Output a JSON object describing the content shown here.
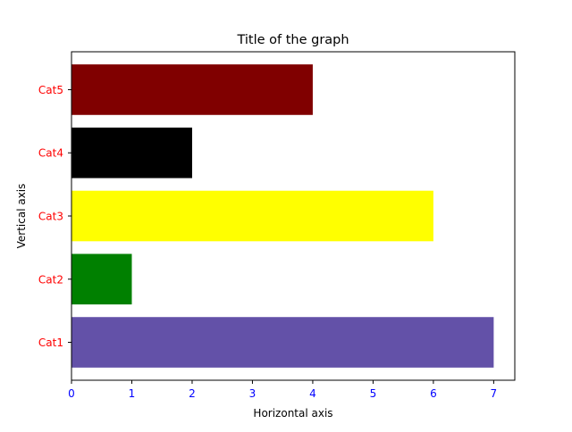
{
  "chart_data": {
    "type": "bar",
    "orientation": "horizontal",
    "title": "Title of the graph",
    "xlabel": "Horizontal axis",
    "ylabel": "Vertical axis",
    "categories": [
      "Cat1",
      "Cat2",
      "Cat3",
      "Cat4",
      "Cat5"
    ],
    "values": [
      7,
      1,
      6,
      2,
      4
    ],
    "bar_colors": [
      "#6351a8",
      "#008000",
      "#ffff00",
      "#000000",
      "#800000"
    ],
    "xlim": [
      0,
      7.35
    ],
    "xticks": [
      0,
      1,
      2,
      3,
      4,
      5,
      6,
      7
    ],
    "tick_label_colors": {
      "x": "#0000ff",
      "y": "#ff0000"
    },
    "grid": false,
    "legend": "none"
  }
}
